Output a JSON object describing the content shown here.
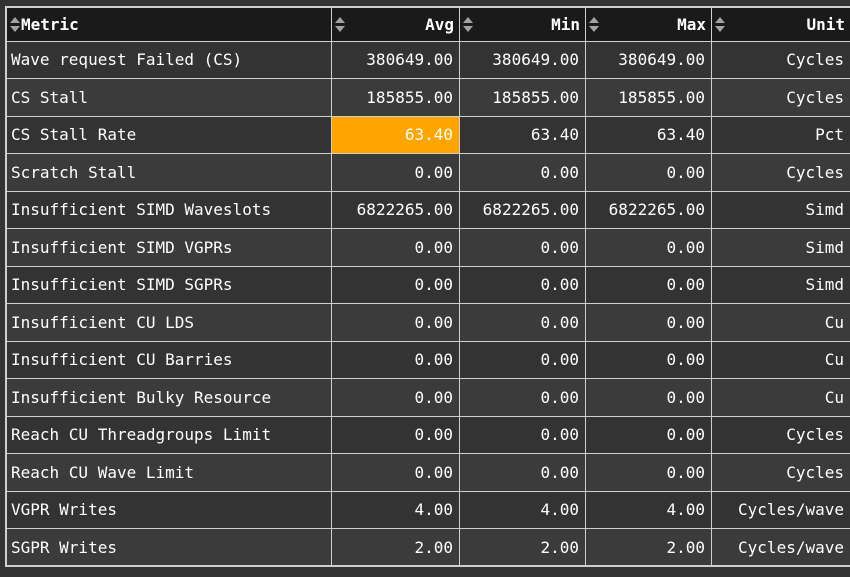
{
  "table": {
    "columns": [
      {
        "key": "metric",
        "label": "Metric",
        "align": "left",
        "sortable": true
      },
      {
        "key": "avg",
        "label": "Avg",
        "align": "right",
        "sortable": true
      },
      {
        "key": "min",
        "label": "Min",
        "align": "right",
        "sortable": true
      },
      {
        "key": "max",
        "label": "Max",
        "align": "right",
        "sortable": true
      },
      {
        "key": "unit",
        "label": "Unit",
        "align": "right",
        "sortable": true
      }
    ],
    "rows": [
      {
        "metric": "Wave request Failed (CS)",
        "avg": "380649.00",
        "min": "380649.00",
        "max": "380649.00",
        "unit": "Cycles"
      },
      {
        "metric": "CS Stall",
        "avg": "185855.00",
        "min": "185855.00",
        "max": "185855.00",
        "unit": "Cycles"
      },
      {
        "metric": "CS Stall Rate",
        "avg": "63.40",
        "min": "63.40",
        "max": "63.40",
        "unit": "Pct"
      },
      {
        "metric": "Scratch Stall",
        "avg": "0.00",
        "min": "0.00",
        "max": "0.00",
        "unit": "Cycles"
      },
      {
        "metric": "Insufficient SIMD Waveslots",
        "avg": "6822265.00",
        "min": "6822265.00",
        "max": "6822265.00",
        "unit": "Simd"
      },
      {
        "metric": "Insufficient SIMD VGPRs",
        "avg": "0.00",
        "min": "0.00",
        "max": "0.00",
        "unit": "Simd"
      },
      {
        "metric": "Insufficient SIMD SGPRs",
        "avg": "0.00",
        "min": "0.00",
        "max": "0.00",
        "unit": "Simd"
      },
      {
        "metric": "Insufficient CU LDS",
        "avg": "0.00",
        "min": "0.00",
        "max": "0.00",
        "unit": "Cu"
      },
      {
        "metric": "Insufficient CU Barries",
        "avg": "0.00",
        "min": "0.00",
        "max": "0.00",
        "unit": "Cu"
      },
      {
        "metric": "Insufficient Bulky Resource",
        "avg": "0.00",
        "min": "0.00",
        "max": "0.00",
        "unit": "Cu"
      },
      {
        "metric": "Reach CU Threadgroups Limit",
        "avg": "0.00",
        "min": "0.00",
        "max": "0.00",
        "unit": "Cycles"
      },
      {
        "metric": "Reach CU Wave Limit",
        "avg": "0.00",
        "min": "0.00",
        "max": "0.00",
        "unit": "Cycles"
      },
      {
        "metric": "VGPR Writes",
        "avg": "4.00",
        "min": "4.00",
        "max": "4.00",
        "unit": "Cycles/wave"
      },
      {
        "metric": "SGPR Writes",
        "avg": "2.00",
        "min": "2.00",
        "max": "2.00",
        "unit": "Cycles/wave"
      }
    ],
    "highlight": {
      "row_index": 2,
      "column": "avg",
      "color": "#ffa500"
    },
    "icons": {
      "header_sort": "sort-toggle-icon"
    },
    "colors": {
      "page_background": "#333333",
      "header_background": "#1a1a1a",
      "row_background_odd": "#333333",
      "row_background_even": "#3b3b3b",
      "grid_border": "#cfcfcf",
      "text": "#ffffff",
      "sort_icon": "#a2a2a2",
      "highlight_cell": "#ffa500"
    }
  }
}
